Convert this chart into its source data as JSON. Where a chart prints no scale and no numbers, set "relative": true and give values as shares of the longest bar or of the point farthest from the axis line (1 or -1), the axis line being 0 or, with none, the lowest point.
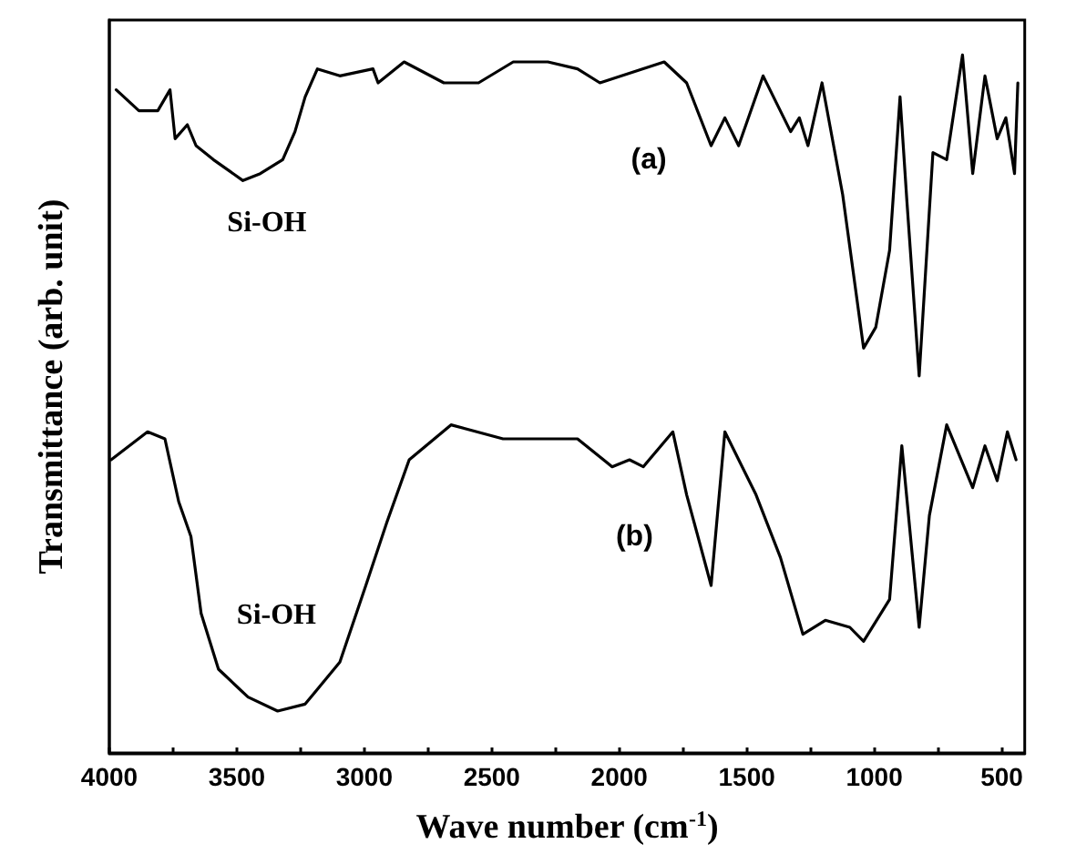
{
  "chart_data": {
    "type": "line",
    "relative": true,
    "xlabel": "Wave number (cm$^{-1}$)",
    "ylabel": "Transmittance (arb. unit)",
    "xlim": [
      4000,
      410
    ],
    "xticks": [
      4000,
      {
        "value": 3750,
        "label": null
      },
      3500,
      {
        "value": 3250,
        "label": null
      },
      3000,
      {
        "value": 2750,
        "label": null
      },
      2500,
      {
        "value": 2250,
        "label": null
      },
      2000,
      {
        "value": 1750,
        "label": null
      },
      1500,
      {
        "value": 1250,
        "label": null
      },
      1000,
      {
        "value": 750,
        "label": null
      },
      500
    ],
    "grid": false,
    "marker": "none",
    "line_style": "solid",
    "series": [
      {
        "color": "#000000",
        "x": [
          3973,
          3884,
          3810,
          3762,
          3742,
          3694,
          3660,
          3592,
          3476,
          3408,
          3320,
          3272,
          3232,
          3184,
          3096,
          2966,
          2946,
          2844,
          2688,
          2552,
          2416,
          2280,
          2164,
          2076,
          1824,
          1736,
          1640,
          1586,
          1532,
          1436,
          1328,
          1294,
          1260,
          1205,
          1124,
          1042,
          994,
          940,
          899,
          872,
          824,
          770,
          716,
          654,
          614,
          566,
          518,
          484,
          450,
          437
        ],
        "values": [
          0.95,
          0.92,
          0.92,
          0.95,
          0.88,
          0.9,
          0.87,
          0.85,
          0.82,
          0.83,
          0.85,
          0.89,
          0.94,
          0.98,
          0.97,
          0.98,
          0.96,
          0.99,
          0.96,
          0.96,
          0.99,
          0.99,
          0.98,
          0.96,
          0.99,
          0.96,
          0.87,
          0.91,
          0.87,
          0.97,
          0.89,
          0.91,
          0.87,
          0.96,
          0.8,
          0.58,
          0.61,
          0.72,
          0.94,
          0.79,
          0.54,
          0.86,
          0.85,
          1.0,
          0.83,
          0.97,
          0.88,
          0.91,
          0.83,
          0.96
        ]
      },
      {
        "color": "#000000",
        "x": [
          3993,
          3850,
          3782,
          3728,
          3680,
          3640,
          3572,
          3456,
          3340,
          3232,
          3096,
          2994,
          2912,
          2824,
          2660,
          2456,
          2280,
          2164,
          2028,
          1960,
          1906,
          1790,
          1736,
          1640,
          1586,
          1464,
          1368,
          1280,
          1192,
          1096,
          1042,
          940,
          892,
          824,
          784,
          716,
          614,
          566,
          518,
          478,
          444
        ],
        "values": [
          0.42,
          0.46,
          0.45,
          0.36,
          0.31,
          0.2,
          0.12,
          0.08,
          0.06,
          0.07,
          0.13,
          0.24,
          0.33,
          0.42,
          0.47,
          0.45,
          0.45,
          0.45,
          0.41,
          0.42,
          0.41,
          0.46,
          0.37,
          0.24,
          0.46,
          0.37,
          0.28,
          0.17,
          0.19,
          0.18,
          0.16,
          0.22,
          0.44,
          0.18,
          0.34,
          0.47,
          0.38,
          0.44,
          0.39,
          0.46,
          0.42
        ]
      }
    ],
    "annotations": [
      "Si-OH",
      "(a)",
      "Si-OH",
      "(b)"
    ]
  }
}
